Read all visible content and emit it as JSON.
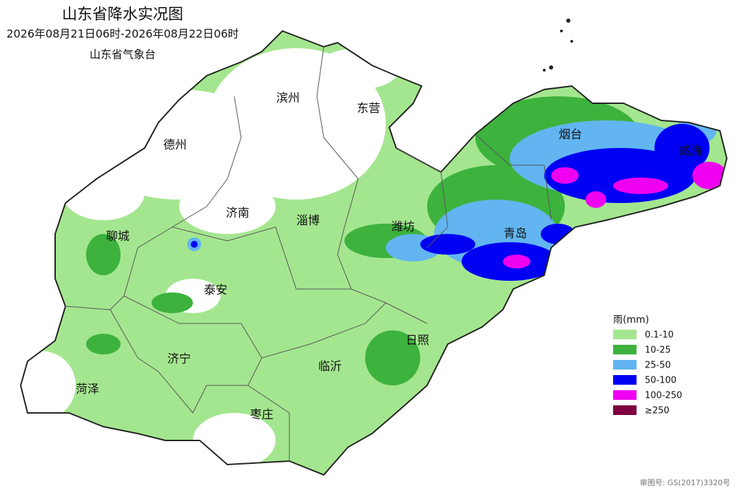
{
  "header": {
    "title": "山东省降水实况图",
    "period": "2026年08月21日06时-2026年08月22日06时",
    "issuer": "山东省气象台"
  },
  "cities": [
    "滨州",
    "东营",
    "德州",
    "烟台",
    "威海",
    "济南",
    "淄博",
    "潍坊",
    "聊城",
    "青岛",
    "泰安",
    "日照",
    "济宁",
    "临沂",
    "菏泽",
    "枣庄"
  ],
  "legend": {
    "title": "雨(mm)",
    "items": [
      {
        "label": "0.1-10",
        "color": "#a4e68f"
      },
      {
        "label": "10-25",
        "color": "#3db23d"
      },
      {
        "label": "25-50",
        "color": "#62b5f0"
      },
      {
        "label": "50-100",
        "color": "#0000f2"
      },
      {
        "label": "100-250",
        "color": "#f000f0"
      },
      {
        "label": "≥250",
        "color": "#7f0040"
      }
    ]
  },
  "footer": "审图号: GS(2017)3320号"
}
